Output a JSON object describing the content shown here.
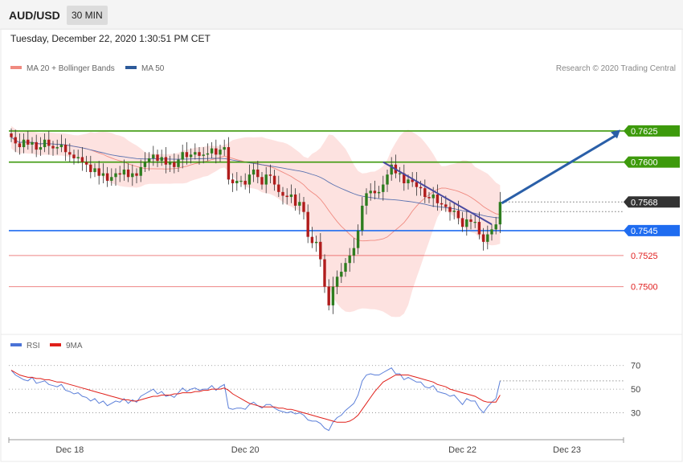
{
  "header": {
    "pair": "AUD/USD",
    "timeframe": "30 MIN"
  },
  "timestamp": "Tuesday, December 22, 2020 1:30:51 PM CET",
  "legend_main": [
    {
      "label": "MA 20 + Bollinger Bands",
      "color": "#f08a80"
    },
    {
      "label": "MA 50",
      "color": "#2d5a9a"
    }
  ],
  "legend_rsi": [
    {
      "label": "RSI",
      "color": "#4a72d6"
    },
    {
      "label": "9MA",
      "color": "#e0201a"
    }
  ],
  "credit": "Research © 2020 Trading Central",
  "chart_data": [
    {
      "type": "candlestick",
      "ylim": [
        0.7463,
        0.7663
      ],
      "x_ticks": [
        "Dec 18",
        "Dec 20",
        "Dec 22",
        "Dec 23"
      ],
      "levels": [
        {
          "value": 0.7625,
          "label": "0.7625",
          "kind": "resistance",
          "color": "#3d9a0c"
        },
        {
          "value": 0.76,
          "label": "0.7600",
          "kind": "resistance",
          "color": "#3d9a0c"
        },
        {
          "value": 0.7568,
          "label": "0.7568",
          "kind": "last-price",
          "color": "#333333"
        },
        {
          "value": 0.7545,
          "label": "0.7545",
          "kind": "pivot",
          "color": "#1f6cf0"
        },
        {
          "value": 0.7525,
          "label": "0.7525",
          "kind": "support",
          "color": "#e02020"
        },
        {
          "value": 0.75,
          "label": "0.7500",
          "kind": "support",
          "color": "#e02020"
        }
      ],
      "series": [
        {
          "name": "MA 20 + Bollinger Bands"
        },
        {
          "name": "MA 50"
        }
      ],
      "close": [
        0.762,
        0.7615,
        0.7612,
        0.7618,
        0.7614,
        0.7616,
        0.761,
        0.7612,
        0.7618,
        0.7613,
        0.7611,
        0.7612,
        0.7614,
        0.7608,
        0.7606,
        0.7603,
        0.7604,
        0.76,
        0.7598,
        0.7592,
        0.7595,
        0.7589,
        0.7591,
        0.7585,
        0.7588,
        0.7591,
        0.759,
        0.7594,
        0.7588,
        0.7591,
        0.7589,
        0.7596,
        0.76,
        0.7603,
        0.7606,
        0.7601,
        0.7604,
        0.7598,
        0.76,
        0.7596,
        0.7602,
        0.7608,
        0.7604,
        0.7606,
        0.7608,
        0.7605,
        0.7606,
        0.7607,
        0.7611,
        0.7606,
        0.761,
        0.7612,
        0.7586,
        0.7583,
        0.7585,
        0.7585,
        0.7582,
        0.759,
        0.7594,
        0.7588,
        0.7582,
        0.759,
        0.7589,
        0.7582,
        0.7576,
        0.7573,
        0.7572,
        0.7574,
        0.7565,
        0.7568,
        0.756,
        0.754,
        0.7535,
        0.7536,
        0.7522,
        0.75,
        0.7485,
        0.75,
        0.7508,
        0.7512,
        0.7519,
        0.7525,
        0.7531,
        0.7545,
        0.7565,
        0.7575,
        0.7577,
        0.7575,
        0.7576,
        0.7582,
        0.759,
        0.7598,
        0.7591,
        0.7591,
        0.7583,
        0.7586,
        0.7584,
        0.758,
        0.7579,
        0.7572,
        0.7571,
        0.7574,
        0.7567,
        0.7566,
        0.7564,
        0.756,
        0.7561,
        0.7555,
        0.7548,
        0.7554,
        0.7552,
        0.7552,
        0.7542,
        0.7536,
        0.7542,
        0.7546,
        0.755,
        0.7568
      ],
      "rsi": {
        "ylim": [
          10,
          80
        ],
        "ticks": [
          30,
          50,
          70
        ],
        "rsi": [
          66,
          62,
          60,
          58,
          57,
          60,
          55,
          56,
          57,
          54,
          53,
          52,
          54,
          49,
          48,
          46,
          47,
          44,
          43,
          40,
          42,
          38,
          40,
          36,
          38,
          40,
          39,
          42,
          38,
          41,
          39,
          44,
          46,
          48,
          50,
          46,
          48,
          44,
          45,
          43,
          47,
          51,
          48,
          50,
          51,
          49,
          50,
          50,
          53,
          49,
          52,
          54,
          34,
          33,
          34,
          34,
          33,
          37,
          39,
          36,
          34,
          37,
          37,
          34,
          32,
          31,
          30,
          31,
          29,
          30,
          28,
          24,
          23,
          23,
          21,
          17,
          15,
          22,
          26,
          28,
          32,
          35,
          38,
          45,
          57,
          62,
          63,
          62,
          62,
          64,
          66,
          68,
          63,
          63,
          58,
          60,
          58,
          56,
          56,
          52,
          51,
          53,
          48,
          47,
          46,
          44,
          45,
          41,
          37,
          42,
          40,
          40,
          34,
          30,
          35,
          39,
          42,
          57
        ],
        "ma9": [
          66,
          64,
          62,
          61,
          60,
          60,
          59,
          59,
          58,
          58,
          57,
          56,
          56,
          55,
          54,
          53,
          52,
          51,
          50,
          49,
          48,
          47,
          46,
          45,
          44,
          43,
          42,
          41,
          41,
          40,
          40,
          41,
          42,
          43,
          44,
          44,
          45,
          45,
          45,
          46,
          46,
          47,
          47,
          47,
          48,
          48,
          49,
          49,
          50,
          50,
          50,
          51,
          49,
          46,
          44,
          42,
          40,
          38,
          37,
          36,
          35,
          35,
          35,
          35,
          34,
          34,
          33,
          33,
          32,
          31,
          30,
          29,
          28,
          27,
          26,
          25,
          24,
          23,
          22,
          22,
          22,
          23,
          25,
          28,
          33,
          38,
          43,
          48,
          52,
          56,
          58,
          60,
          62,
          62,
          62,
          62,
          61,
          60,
          59,
          58,
          57,
          56,
          54,
          53,
          52,
          50,
          49,
          48,
          47,
          46,
          45,
          44,
          42,
          40,
          39,
          39,
          39,
          45
        ]
      },
      "annotation": "projection arrow toward 0.7625"
    }
  ]
}
